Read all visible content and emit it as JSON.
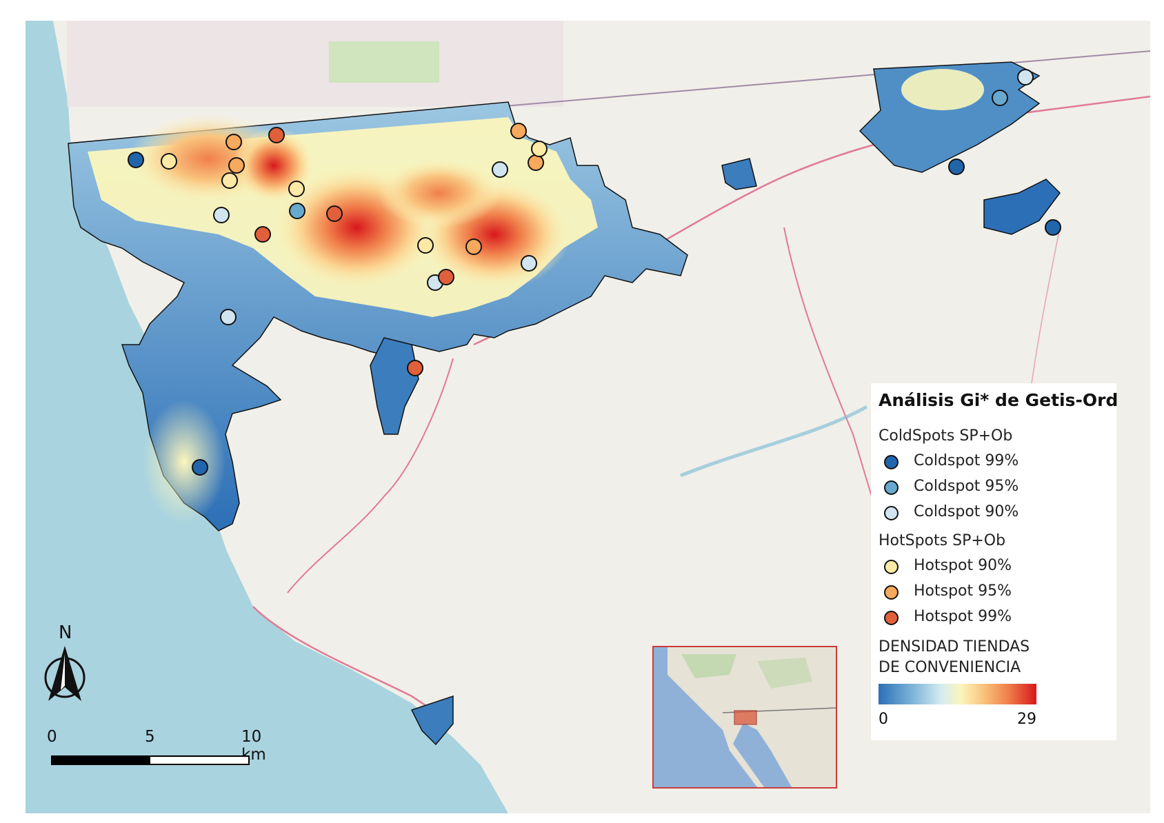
{
  "legend": {
    "title": "Análisis Gi* de Getis-Ord",
    "coldspots_heading": "ColdSpots SP+Ob",
    "coldspots": [
      {
        "label": "Coldspot 99%",
        "color": "#2166ac"
      },
      {
        "label": "Coldspot 95%",
        "color": "#67a9cf"
      },
      {
        "label": "Coldspot 90%",
        "color": "#d1e5f0"
      }
    ],
    "hotspots_heading": "HotSpots SP+Ob",
    "hotspots": [
      {
        "label": "Hotspot 90%",
        "color": "#fde9a6"
      },
      {
        "label": "Hotspot 95%",
        "color": "#f7a95d"
      },
      {
        "label": "Hotspot 99%",
        "color": "#e0603b"
      }
    ],
    "density_title_line1": "DENSIDAD TIENDAS",
    "density_title_line2": "DE CONVENIENCIA",
    "density_min": "0",
    "density_max": "29"
  },
  "scale_bar": {
    "ticks": [
      "0",
      "5",
      "10 km"
    ]
  },
  "north_arrow": {
    "label": "N",
    "icon": "north-arrow-icon"
  },
  "colors": {
    "ocean": "#a9d3df",
    "land": "#f1efe9",
    "density_low": "#2c6fb6",
    "density_high": "#d7191c",
    "inset_border": "#cc3b3b"
  }
}
